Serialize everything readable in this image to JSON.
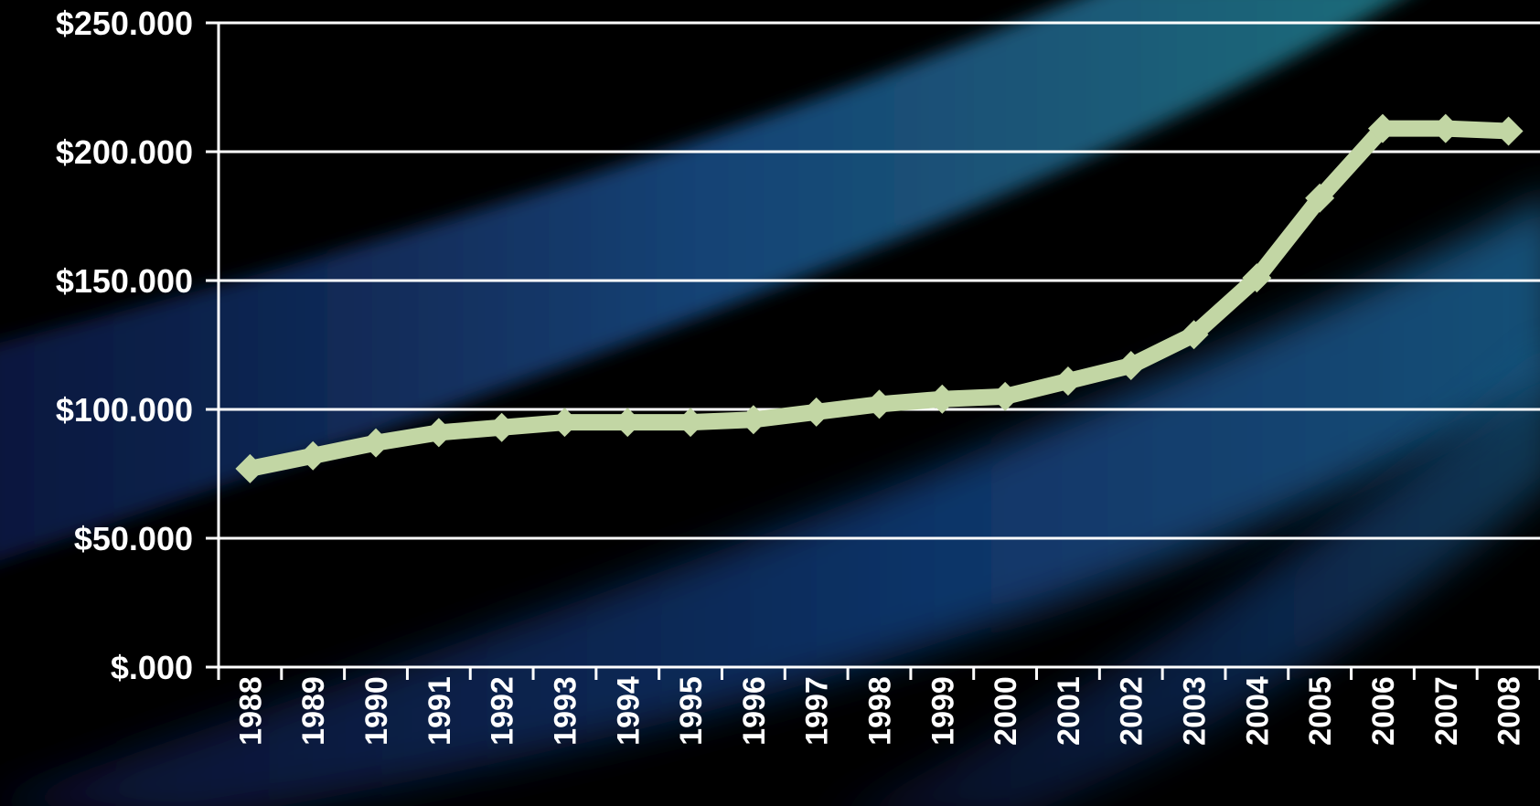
{
  "chart_data": {
    "type": "line",
    "title": "",
    "xlabel": "",
    "ylabel": "",
    "categories": [
      "1988",
      "1989",
      "1990",
      "1991",
      "1992",
      "1993",
      "1994",
      "1995",
      "1996",
      "1997",
      "1998",
      "1999",
      "2000",
      "2001",
      "2002",
      "2003",
      "2004",
      "2005",
      "2006",
      "2007",
      "2008"
    ],
    "series": [
      {
        "name": "",
        "values": [
          77000,
          82000,
          87000,
          91000,
          93000,
          95000,
          95000,
          95000,
          96000,
          99000,
          102000,
          104000,
          105000,
          111000,
          117000,
          129000,
          151000,
          182000,
          209000,
          209000,
          208000
        ]
      }
    ],
    "ylim": [
      0,
      250000
    ],
    "y_ticks": [
      {
        "value": 0,
        "label": "$.000"
      },
      {
        "value": 50000,
        "label": "$50.000"
      },
      {
        "value": 100000,
        "label": "$100.000"
      },
      {
        "value": 150000,
        "label": "$150.000"
      },
      {
        "value": 200000,
        "label": "$200.000"
      },
      {
        "value": 250000,
        "label": "$250.000"
      }
    ],
    "grid": true,
    "legend": "none",
    "colors": {
      "line": "#c2d6a4",
      "grid": "#ffffff",
      "axis": "#ffffff",
      "text": "#ffffff",
      "background": "#000000",
      "band_blue": "#1b3a8c",
      "band_teal": "#1f6f86"
    }
  }
}
